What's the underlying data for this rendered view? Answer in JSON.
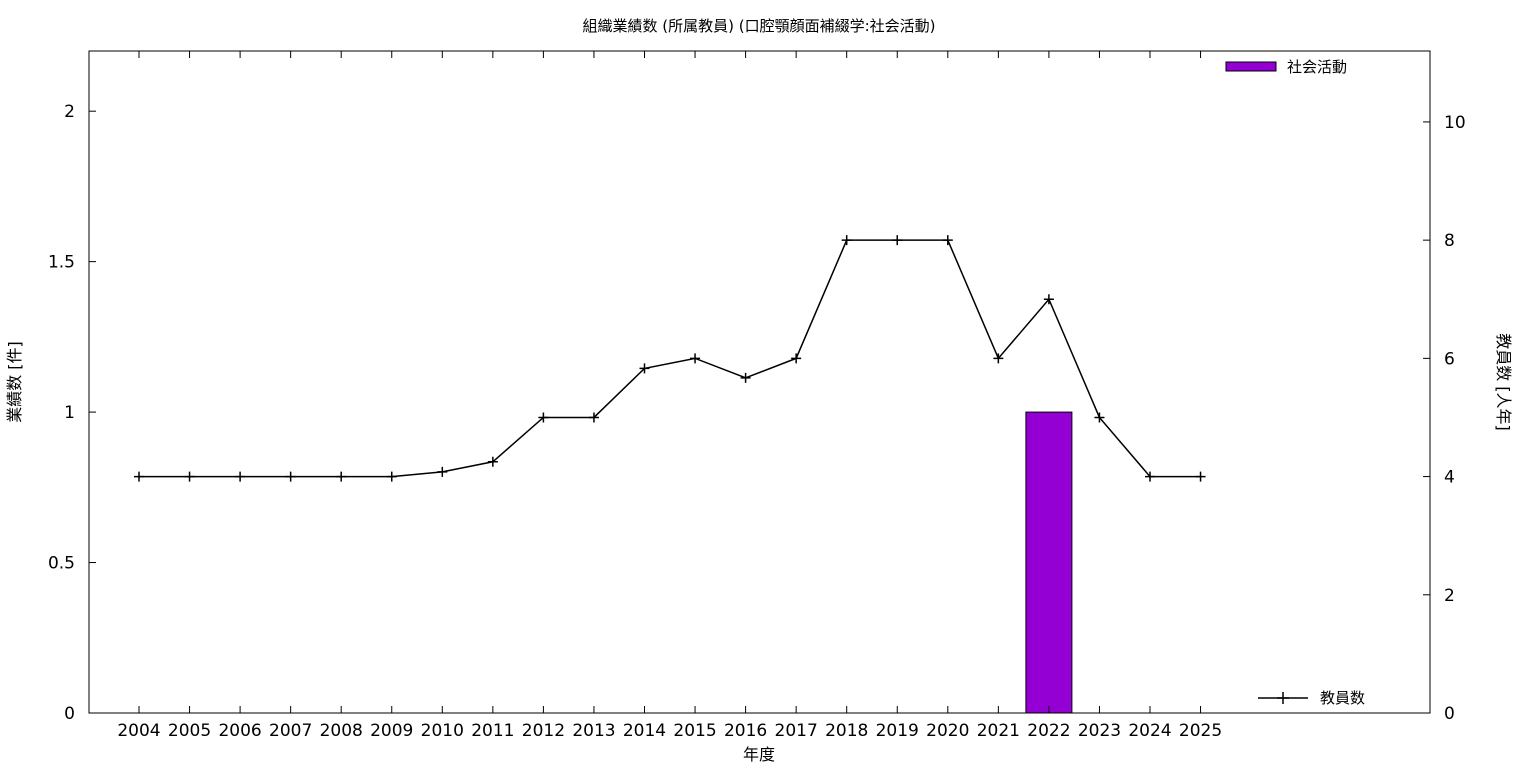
{
  "chart_data": {
    "type": "bar",
    "title": "組織業績数 (所属教員) (口腔顎顔面補綴学:社会活動)",
    "xlabel": "年度",
    "ylabel": "業績数 [件]",
    "y2label": "教員数 [人年]",
    "categories": [
      "2004",
      "2005",
      "2006",
      "2007",
      "2008",
      "2009",
      "2010",
      "2011",
      "2012",
      "2013",
      "2014",
      "2015",
      "2016",
      "2017",
      "2018",
      "2019",
      "2020",
      "2021",
      "2022",
      "2023",
      "2024",
      "2025"
    ],
    "ylim": [
      0,
      2.2
    ],
    "yticks": [
      0,
      0.5,
      1,
      1.5,
      2
    ],
    "ytick_labels": [
      "0",
      "0.5",
      "1",
      "1.5",
      "2"
    ],
    "y2lim": [
      0,
      11.2
    ],
    "y2ticks": [
      0,
      2,
      4,
      6,
      8,
      10
    ],
    "y2tick_labels": [
      "0",
      "2",
      "4",
      "6",
      "8",
      "10"
    ],
    "grid": false,
    "series": [
      {
        "name": "社会活動",
        "type": "bar",
        "axis": "left",
        "color": "#9400d3",
        "values": [
          0,
          0,
          0,
          0,
          0,
          0,
          0,
          0,
          0,
          0,
          0,
          0,
          0,
          0,
          0,
          0,
          0,
          0,
          1,
          0,
          0,
          0
        ]
      },
      {
        "name": "教員数",
        "type": "line",
        "axis": "right",
        "color": "#000000",
        "marker": "plus",
        "values": [
          4,
          4,
          4,
          4,
          4,
          4,
          4.08,
          4.25,
          5,
          5,
          5.83,
          6,
          5.67,
          6,
          8,
          8,
          8,
          6,
          7,
          5,
          4,
          4
        ]
      }
    ],
    "legend": [
      {
        "label": "社会活動",
        "placement": "top-right",
        "kind": "bar"
      },
      {
        "label": "教員数",
        "placement": "bottom-right",
        "kind": "line"
      }
    ]
  }
}
